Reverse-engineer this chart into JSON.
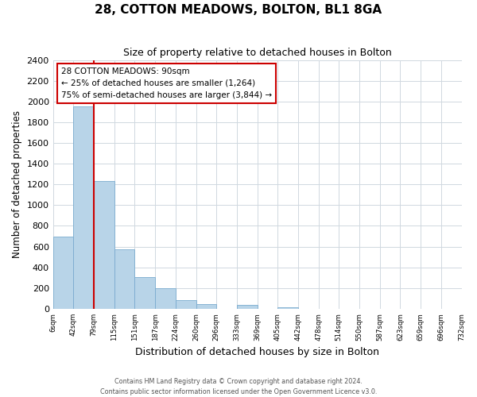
{
  "title": "28, COTTON MEADOWS, BOLTON, BL1 8GA",
  "subtitle": "Size of property relative to detached houses in Bolton",
  "xlabel": "Distribution of detached houses by size in Bolton",
  "ylabel": "Number of detached properties",
  "bin_labels": [
    "6sqm",
    "42sqm",
    "79sqm",
    "115sqm",
    "151sqm",
    "187sqm",
    "224sqm",
    "260sqm",
    "296sqm",
    "333sqm",
    "369sqm",
    "405sqm",
    "442sqm",
    "478sqm",
    "514sqm",
    "550sqm",
    "587sqm",
    "623sqm",
    "659sqm",
    "696sqm",
    "732sqm"
  ],
  "bar_values": [
    700,
    1950,
    1230,
    575,
    305,
    200,
    80,
    45,
    0,
    35,
    0,
    15,
    0,
    0,
    0,
    0,
    0,
    0,
    0,
    0
  ],
  "bar_color": "#b8d4e8",
  "bar_edge_color": "#7aabcf",
  "vline_x": 1.5,
  "vline_color": "#cc0000",
  "annotation_line1": "28 COTTON MEADOWS: 90sqm",
  "annotation_line2": "← 25% of detached houses are smaller (1,264)",
  "annotation_line3": "75% of semi-detached houses are larger (3,844) →",
  "annotation_box_edge_color": "#cc0000",
  "ylim": [
    0,
    2400
  ],
  "yticks": [
    0,
    200,
    400,
    600,
    800,
    1000,
    1200,
    1400,
    1600,
    1800,
    2000,
    2200,
    2400
  ],
  "footer_line1": "Contains HM Land Registry data © Crown copyright and database right 2024.",
  "footer_line2": "Contains public sector information licensed under the Open Government Licence v3.0.",
  "background_color": "#ffffff",
  "grid_color": "#d0d8e0"
}
